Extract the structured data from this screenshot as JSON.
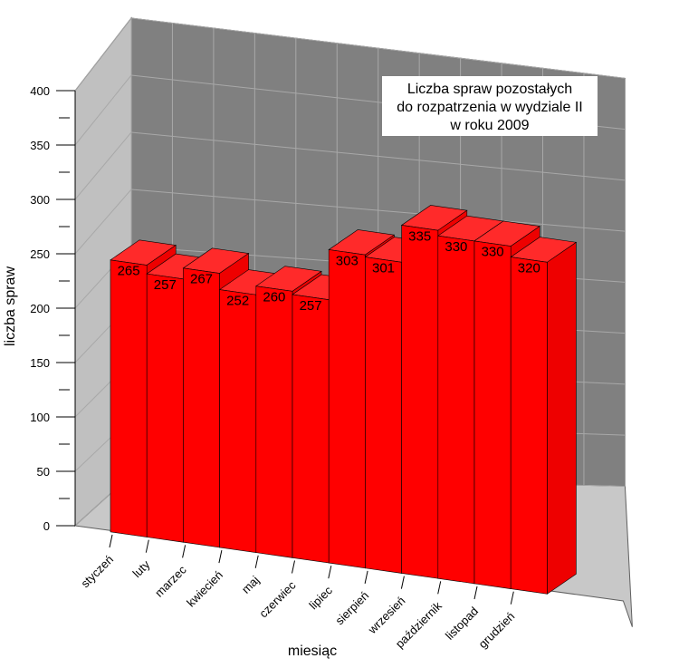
{
  "chart_data": {
    "type": "bar",
    "title": [
      "Liczba spraw pozostałych",
      "do rozpatrzenia w  wydziale II",
      "w roku 2009"
    ],
    "xlabel": "miesiąc",
    "ylabel": "liczba spraw",
    "categories": [
      "styczeń",
      "luty",
      "marzec",
      "kwiecień",
      "maj",
      "czerwiec",
      "lipiec",
      "sierpień",
      "wrzesień",
      "październik",
      "listopad",
      "grudzień"
    ],
    "values": [
      265,
      257,
      267,
      252,
      260,
      257,
      303,
      301,
      335,
      330,
      330,
      320
    ],
    "ylim": [
      0,
      400
    ],
    "yticks": [
      0,
      50,
      100,
      150,
      200,
      250,
      300,
      350,
      400
    ],
    "grid": true,
    "style_3d": true,
    "colors": {
      "bar_front": "#ff0000",
      "bar_top": "#ff2a2a",
      "bar_side": "#ee0000",
      "back_wall": "#808080",
      "side_wall": "#c0c0c0",
      "floor": "#c8c8c8",
      "grid": "#a8a8a8",
      "title_box": "#ffffff"
    }
  }
}
